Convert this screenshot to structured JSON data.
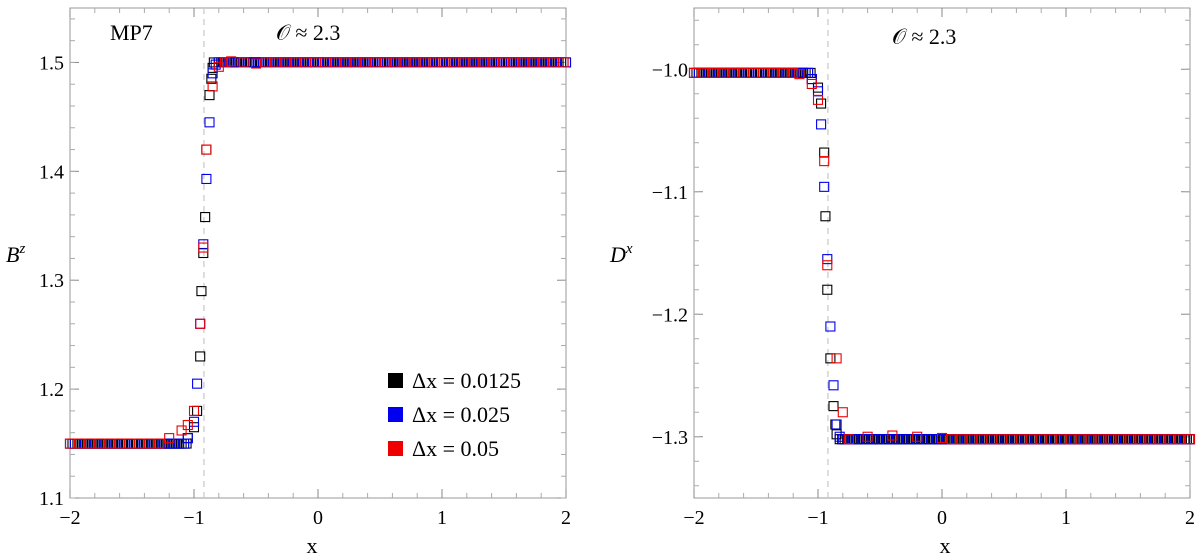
{
  "colors": {
    "black": "#000000",
    "blue": "#0000ee",
    "red": "#ee0000",
    "frame": "#999999",
    "dashed": "#c8c8c8"
  },
  "legend": {
    "items": [
      {
        "label": "Δx = 0.0125",
        "color": "#000000"
      },
      {
        "label": "Δx = 0.025",
        "color": "#0000ee"
      },
      {
        "label": "Δx = 0.05",
        "color": "#ee0000"
      }
    ],
    "placement": "bottom-right of left panel"
  },
  "chart_data": [
    {
      "type": "scatter",
      "marker": "open-square",
      "annotation_top_left": "MP7",
      "annotation_top": "𝒪 ≈ 2.3",
      "xlabel": "x",
      "ylabel_base": "B",
      "ylabel_sup": "z",
      "xlim": [
        -2,
        2
      ],
      "ylim": [
        1.1,
        1.55
      ],
      "xticks": [
        "−2",
        "−1",
        "0",
        "1",
        "2"
      ],
      "xtick_values": [
        -2,
        -1,
        0,
        1,
        2
      ],
      "yticks": [
        "1.1",
        "1.2",
        "1.3",
        "1.4",
        "1.5"
      ],
      "ytick_values": [
        1.1,
        1.2,
        1.3,
        1.4,
        1.5
      ],
      "dashed_vline_x": -0.92,
      "left_value": 1.15,
      "right_value": 1.5,
      "series": [
        {
          "name": "Δx = 0.0125",
          "points": [
            [
              -1.05,
              1.155
            ],
            [
              -1.0,
              1.165
            ],
            [
              -0.975,
              1.18
            ],
            [
              -0.95,
              1.23
            ],
            [
              -0.94,
              1.29
            ],
            [
              -0.925,
              1.325
            ],
            [
              -0.91,
              1.358
            ],
            [
              -0.9,
              1.42
            ],
            [
              -0.875,
              1.47
            ],
            [
              -0.86,
              1.485
            ],
            [
              -0.85,
              1.495
            ],
            [
              -0.84,
              1.5
            ],
            [
              -0.8,
              1.5
            ]
          ]
        },
        {
          "name": "Δx = 0.025",
          "points": [
            [
              -1.05,
              1.155
            ],
            [
              -1.0,
              1.17
            ],
            [
              -0.975,
              1.205
            ],
            [
              -0.95,
              1.26
            ],
            [
              -0.925,
              1.333
            ],
            [
              -0.9,
              1.393
            ],
            [
              -0.875,
              1.445
            ],
            [
              -0.85,
              1.49
            ],
            [
              -0.825,
              1.498
            ],
            [
              -0.8,
              1.5
            ]
          ]
        },
        {
          "name": "Δx = 0.05",
          "points": [
            [
              -1.2,
              1.155
            ],
            [
              -1.1,
              1.162
            ],
            [
              -1.05,
              1.167
            ],
            [
              -1.0,
              1.18
            ],
            [
              -0.95,
              1.26
            ],
            [
              -0.925,
              1.33
            ],
            [
              -0.9,
              1.42
            ],
            [
              -0.85,
              1.478
            ],
            [
              -0.8,
              1.496
            ],
            [
              -0.75,
              1.5
            ],
            [
              -0.7,
              1.501
            ],
            [
              -0.6,
              1.5
            ],
            [
              -0.5,
              1.499
            ]
          ]
        }
      ]
    },
    {
      "type": "scatter",
      "marker": "open-square",
      "annotation_top": "𝒪 ≈ 2.3",
      "xlabel": "x",
      "ylabel_base": "D",
      "ylabel_sup": "x",
      "xlim": [
        -2,
        2
      ],
      "ylim": [
        -1.35,
        -0.95
      ],
      "xticks": [
        "−2",
        "−1",
        "0",
        "1",
        "2"
      ],
      "xtick_values": [
        -2,
        -1,
        0,
        1,
        2
      ],
      "yticks": [
        "−1.0",
        "−1.1",
        "−1.2",
        "−1.3"
      ],
      "ytick_values": [
        -1.0,
        -1.1,
        -1.2,
        -1.3
      ],
      "dashed_vline_x": -0.92,
      "left_value": -1.003,
      "right_value": -1.302,
      "series": [
        {
          "name": "Δx = 0.0125",
          "points": [
            [
              -1.05,
              -1.008
            ],
            [
              -1.0,
              -1.015
            ],
            [
              -0.975,
              -1.028
            ],
            [
              -0.95,
              -1.068
            ],
            [
              -0.94,
              -1.12
            ],
            [
              -0.925,
              -1.18
            ],
            [
              -0.9,
              -1.236
            ],
            [
              -0.875,
              -1.275
            ],
            [
              -0.86,
              -1.29
            ],
            [
              -0.85,
              -1.298
            ],
            [
              -0.825,
              -1.302
            ]
          ]
        },
        {
          "name": "Δx = 0.025",
          "points": [
            [
              -1.05,
              -1.008
            ],
            [
              -1.0,
              -1.018
            ],
            [
              -0.975,
              -1.045
            ],
            [
              -0.95,
              -1.096
            ],
            [
              -0.925,
              -1.155
            ],
            [
              -0.9,
              -1.21
            ],
            [
              -0.875,
              -1.258
            ],
            [
              -0.85,
              -1.29
            ],
            [
              -0.825,
              -1.3
            ],
            [
              -0.8,
              -1.302
            ]
          ]
        },
        {
          "name": "Δx = 0.05",
          "points": [
            [
              -1.15,
              -1.004
            ],
            [
              -1.05,
              -1.012
            ],
            [
              -1.0,
              -1.025
            ],
            [
              -0.95,
              -1.075
            ],
            [
              -0.925,
              -1.16
            ],
            [
              -0.85,
              -1.236
            ],
            [
              -0.8,
              -1.28
            ],
            [
              -0.75,
              -1.302
            ],
            [
              -0.6,
              -1.3
            ],
            [
              -0.4,
              -1.299
            ],
            [
              -0.2,
              -1.3
            ],
            [
              0.0,
              -1.301
            ]
          ]
        }
      ]
    }
  ]
}
